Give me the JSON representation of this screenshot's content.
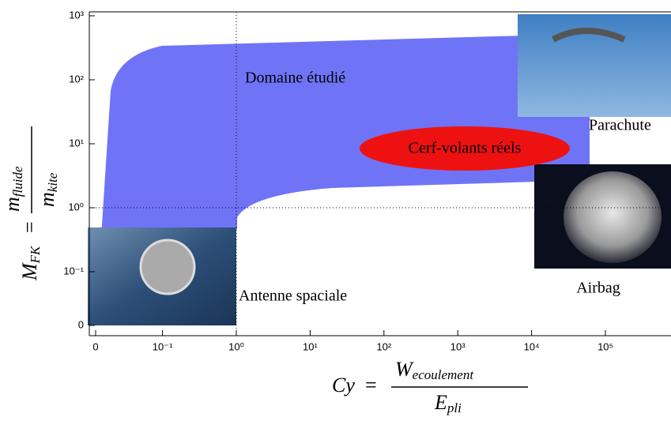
{
  "chart_data": {
    "type": "log-log",
    "xscale": "log",
    "yscale": "log",
    "xlim": [
      0,
      1000000
    ],
    "ylim": [
      0,
      1000
    ],
    "xticks": [
      0,
      {
        "value": 0.1,
        "label": "10⁻¹"
      },
      {
        "value": 1,
        "label": "10⁰"
      },
      {
        "value": 10,
        "label": "10¹"
      },
      {
        "value": 100,
        "label": "10²"
      },
      {
        "value": 1000,
        "label": "10³"
      },
      {
        "value": 10000,
        "label": "10⁴"
      },
      {
        "value": 100000,
        "label": "10⁵"
      }
    ],
    "yticks": [
      0,
      {
        "value": 0.1,
        "label": "10⁻¹"
      },
      {
        "value": 1,
        "label": "10⁰"
      },
      {
        "value": 10,
        "label": "10¹"
      },
      {
        "value": 100,
        "label": "10²"
      },
      {
        "value": 1000,
        "label": "10³"
      }
    ],
    "x_label": {
      "lhs": "Cy",
      "numerator": "W",
      "numerator_sub": "ecoulement",
      "denominator": "E",
      "denominator_sub": "pli"
    },
    "y_label": {
      "lhs": "M",
      "lhs_sub": "FK",
      "numerator": "m",
      "numerator_sub": "fluide",
      "denominator": "m",
      "denominator_sub": "kite"
    },
    "annotations": [
      "Domaine étudié",
      "Cerf-volants réels",
      "Parachute",
      "Airbag",
      "Antenne spaciale"
    ],
    "region_color": "#6f74f7",
    "ellipse_color": "#ee1111"
  }
}
